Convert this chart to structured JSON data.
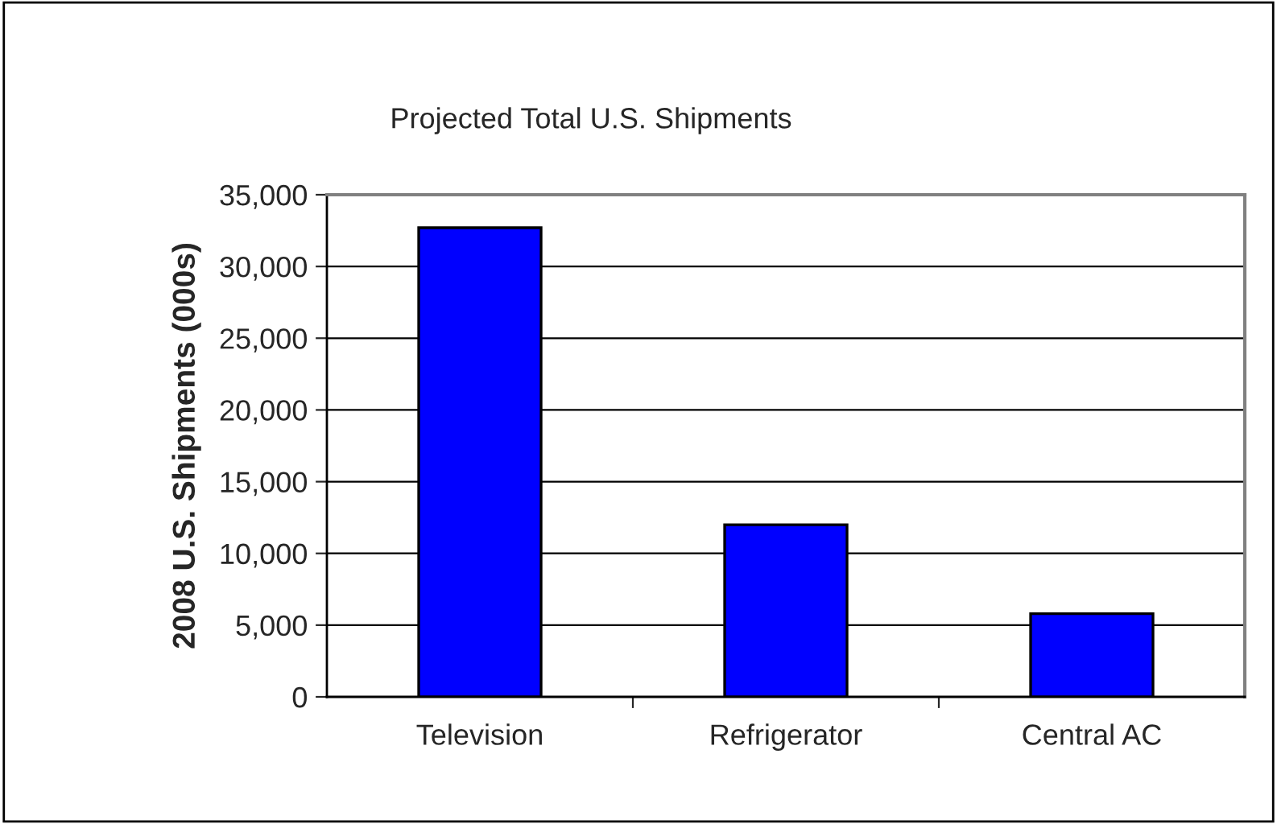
{
  "chart_data": {
    "type": "bar",
    "title": "Projected Total U.S. Shipments",
    "ylabel": "2008 U.S. Shipments (000s)",
    "categories": [
      "Television",
      "Refrigerator",
      "Central AC"
    ],
    "values": [
      32700,
      12000,
      5800
    ],
    "color": "#0000ff",
    "ylim": [
      0,
      35000
    ],
    "yticks": [
      {
        "value": 0,
        "label": "0"
      },
      {
        "value": 5000,
        "label": "5,000"
      },
      {
        "value": 10000,
        "label": "10,000"
      },
      {
        "value": 15000,
        "label": "15,000"
      },
      {
        "value": 20000,
        "label": "20,000"
      },
      {
        "value": 25000,
        "label": "25,000"
      },
      {
        "value": 30000,
        "label": "30,000"
      },
      {
        "value": 35000,
        "label": "35,000"
      }
    ],
    "grid": "y",
    "legend": false
  }
}
